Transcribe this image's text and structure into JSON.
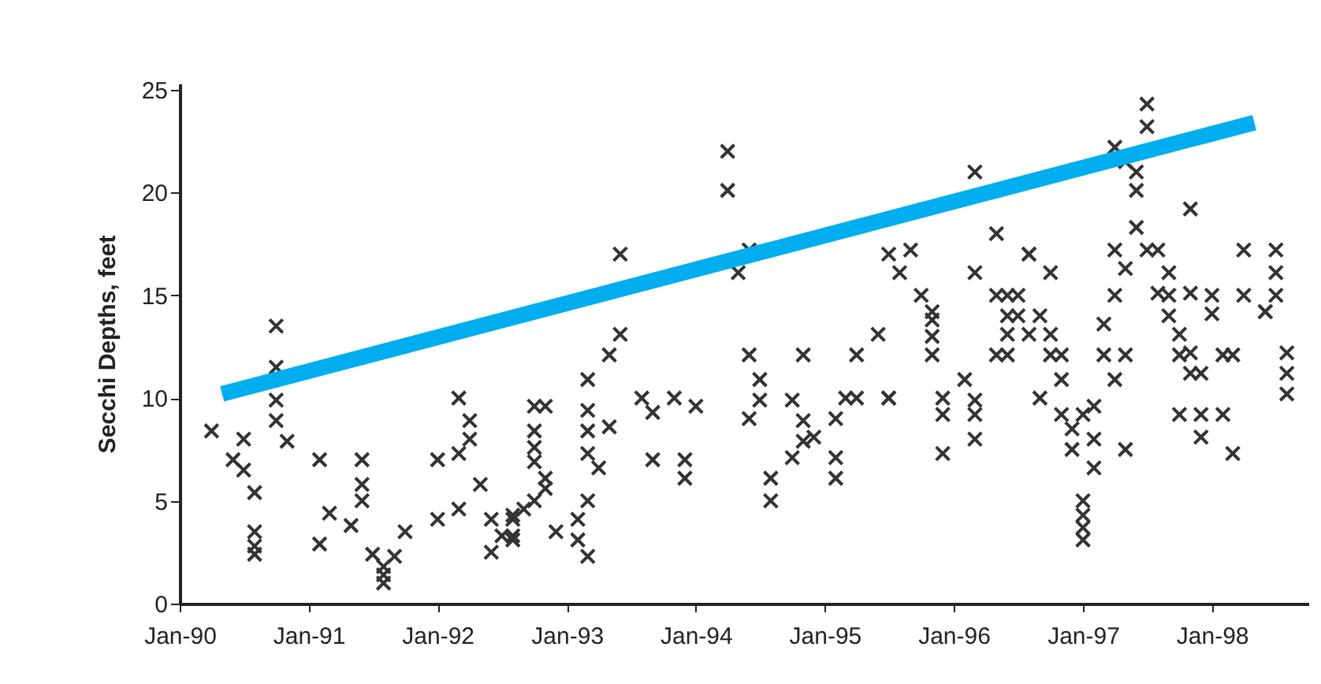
{
  "chart_data": {
    "type": "scatter",
    "ylabel": "Secchi Depths, feet",
    "grid": false,
    "xlim": [
      "1990-01",
      "1998-10"
    ],
    "ylim": [
      0,
      25.3
    ],
    "yticks": [
      0,
      5,
      10,
      15,
      20,
      25
    ],
    "xticks": [
      {
        "value": "1990-01",
        "label": "Jan-90"
      },
      {
        "value": "1991-01",
        "label": "Jan-91"
      },
      {
        "value": "1992-01",
        "label": "Jan-92"
      },
      {
        "value": "1993-01",
        "label": "Jan-93"
      },
      {
        "value": "1994-01",
        "label": "Jan-94"
      },
      {
        "value": "1995-01",
        "label": "Jan-95"
      },
      {
        "value": "1996-01",
        "label": "Jan-96"
      },
      {
        "value": "1997-01",
        "label": "Jan-97"
      },
      {
        "value": "1998-01",
        "label": "Jan-98"
      }
    ],
    "series": [
      {
        "type": "scatter",
        "color": "#333333",
        "marker": "cross",
        "x": [
          "1990-04",
          "1990-06",
          "1990-07",
          "1990-07",
          "1990-08",
          "1990-08",
          "1990-08",
          "1990-08",
          "1990-10",
          "1990-10",
          "1990-10",
          "1990-10",
          "1990-11",
          "1991-02",
          "1991-03",
          "1991-02",
          "1991-05",
          "1991-06",
          "1991-06",
          "1991-06",
          "1991-07",
          "1991-08",
          "1991-08",
          "1991-08",
          "1991-09",
          "1991-10",
          "1992-01",
          "1992-01",
          "1992-03",
          "1992-03",
          "1992-04",
          "1992-04",
          "1992-03",
          "1992-05",
          "1992-06",
          "1992-07",
          "1992-06",
          "1992-08",
          "1992-08",
          "1992-09",
          "1992-11",
          "1992-10",
          "1992-10",
          "1992-11",
          "1992-10",
          "1992-08",
          "1992-08",
          "1992-10",
          "1992-10",
          "1992-11",
          "1992-12",
          "1993-02",
          "1993-03",
          "1993-03",
          "1993-02",
          "1993-03",
          "1993-03",
          "1993-03",
          "1993-03",
          "1993-04",
          "1993-05",
          "1993-05",
          "1993-06",
          "1993-06",
          "1993-08",
          "1993-09",
          "1993-09",
          "1993-11",
          "1993-12",
          "1993-12",
          "1994-01",
          "1994-04",
          "1994-04",
          "1994-05",
          "1994-06",
          "1994-06",
          "1994-07",
          "1994-07",
          "1994-06",
          "1994-08",
          "1994-08",
          "1994-11",
          "1994-10",
          "1994-11",
          "1994-11",
          "1994-10",
          "1994-12",
          "1995-02",
          "1995-02",
          "1995-03",
          "1995-02",
          "1995-04",
          "1995-04",
          "1995-06",
          "1995-07",
          "1995-07",
          "1995-08",
          "1995-09",
          "1995-10",
          "1995-11",
          "1995-11",
          "1995-11",
          "1995-11",
          "1995-07",
          "1995-12",
          "1995-12",
          "1995-12",
          "1996-02",
          "1996-03",
          "1996-03",
          "1996-03",
          "1996-03",
          "1996-03",
          "1996-05",
          "1996-05",
          "1996-06",
          "1996-06",
          "1996-06",
          "1996-05",
          "1996-06",
          "1996-07",
          "1996-08",
          "1996-08",
          "1996-07",
          "1996-08",
          "1996-09",
          "1996-10",
          "1996-10",
          "1996-09",
          "1996-10",
          "1996-11",
          "1996-11",
          "1996-11",
          "1996-12",
          "1996-12",
          "1997-01",
          "1997-02",
          "1997-02",
          "1997-02",
          "1997-01",
          "1997-01",
          "1997-01",
          "1997-01",
          "1997-05",
          "1997-03",
          "1997-04",
          "1997-03",
          "1997-04",
          "1997-05",
          "1997-04",
          "1997-05",
          "1997-07",
          "1997-07",
          "1997-06",
          "1997-06",
          "1997-06",
          "1997-04",
          "1997-05",
          "1997-07",
          "1997-08",
          "1997-08",
          "1997-09",
          "1997-09",
          "1997-11",
          "1997-09",
          "1997-10",
          "1997-10",
          "1997-11",
          "1997-11",
          "1997-12",
          "1997-11",
          "1998-01",
          "1998-01",
          "1998-02",
          "1998-03",
          "1997-10",
          "1997-12",
          "1997-12",
          "1998-02",
          "1998-03",
          "1998-04",
          "1998-04",
          "1998-06",
          "1998-07",
          "1998-07",
          "1998-07",
          "1998-06",
          "1998-08",
          "1998-08",
          "1998-08"
        ],
        "values": [
          8.4,
          7.0,
          8.0,
          6.5,
          5.4,
          3.5,
          2.8,
          2.4,
          13.5,
          11.5,
          9.9,
          8.9,
          7.9,
          7.0,
          4.4,
          2.9,
          3.8,
          5.0,
          7.0,
          5.8,
          2.4,
          1.4,
          1.0,
          1.8,
          2.3,
          3.5,
          7.0,
          4.1,
          4.6,
          10.0,
          8.9,
          8.0,
          7.3,
          5.8,
          4.1,
          3.3,
          2.5,
          4.1,
          3.3,
          4.6,
          9.6,
          8.4,
          6.9,
          5.6,
          5.0,
          4.3,
          3.1,
          7.6,
          9.6,
          6.1,
          3.5,
          3.1,
          2.3,
          5.0,
          4.1,
          10.9,
          9.4,
          8.4,
          7.3,
          6.6,
          12.1,
          8.6,
          13.1,
          17.0,
          10.0,
          9.3,
          7.0,
          10.0,
          7.0,
          6.1,
          9.6,
          22.0,
          20.1,
          16.1,
          17.2,
          12.1,
          10.9,
          9.9,
          9.0,
          6.1,
          5.0,
          12.1,
          9.9,
          8.9,
          7.9,
          7.1,
          8.1,
          7.1,
          6.1,
          10.0,
          9.0,
          12.1,
          10.0,
          13.1,
          10.0,
          17.0,
          16.1,
          17.2,
          15.0,
          14.2,
          13.8,
          13.0,
          12.1,
          10.0,
          10.0,
          9.2,
          7.3,
          10.9,
          9.9,
          9.2,
          8.0,
          21.0,
          16.1,
          18.0,
          15.0,
          15.0,
          14.0,
          13.1,
          12.1,
          12.1,
          15.0,
          17.0,
          17.0,
          14.0,
          13.1,
          14.0,
          13.1,
          16.1,
          10.0,
          12.1,
          12.1,
          10.9,
          9.2,
          8.5,
          7.5,
          9.2,
          9.6,
          8.0,
          6.6,
          5.0,
          4.3,
          3.7,
          3.1,
          7.5,
          13.6,
          15.0,
          12.1,
          10.9,
          12.1,
          22.2,
          21.5,
          24.3,
          23.2,
          21.0,
          20.1,
          18.3,
          17.2,
          16.3,
          17.2,
          17.2,
          15.1,
          16.1,
          15.0,
          15.1,
          14.0,
          13.1,
          12.1,
          12.2,
          11.2,
          11.2,
          19.2,
          15.0,
          14.1,
          12.1,
          12.1,
          9.2,
          9.2,
          8.1,
          9.2,
          7.3,
          17.2,
          15.0,
          14.2,
          16.1,
          17.2,
          15.0,
          14.2,
          12.2,
          11.2,
          10.2
        ]
      },
      {
        "type": "line",
        "color": "#00aeef",
        "marker": "none",
        "x": [
          "1990-05",
          "1998-05"
        ],
        "values": [
          10.2,
          23.4
        ]
      }
    ]
  }
}
